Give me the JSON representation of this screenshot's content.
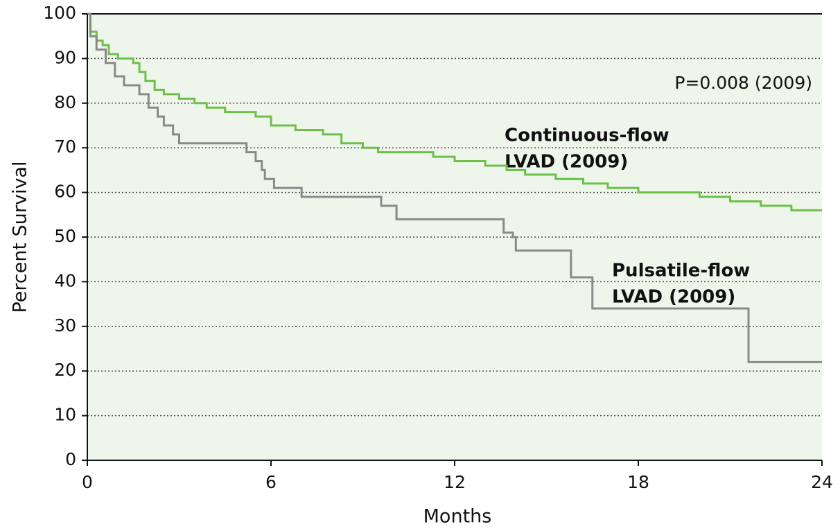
{
  "chart_data": {
    "type": "line",
    "step": true,
    "x_label": "Months",
    "y_label": "Percent Survival",
    "xlim": [
      0,
      24
    ],
    "xticks": [
      0,
      6,
      12,
      18,
      24
    ],
    "ylim": [
      0,
      100
    ],
    "yticks": [
      0,
      10,
      20,
      30,
      40,
      50,
      60,
      70,
      80,
      90,
      100
    ],
    "grid": true,
    "background": "#eef5ea",
    "annotations": [
      "P=0.008 (2009)"
    ],
    "series": [
      {
        "label_lines": [
          "Continuous-flow",
          "LVAD (2009)"
        ],
        "color": "#6cc04a",
        "x": [
          0,
          0.1,
          0.3,
          0.5,
          0.7,
          1.0,
          1.5,
          1.7,
          1.9,
          2.2,
          2.5,
          3.0,
          3.5,
          3.9,
          4.5,
          5.5,
          6.0,
          6.8,
          7.7,
          8.3,
          9.0,
          9.5,
          11.3,
          12.0,
          13.0,
          13.7,
          14.3,
          15.3,
          16.2,
          17.0,
          18.0,
          20.0,
          21.0,
          22.0,
          23.0,
          24
        ],
        "values": [
          100,
          96,
          94,
          93,
          91,
          90,
          89,
          87,
          85,
          83,
          82,
          81,
          80,
          79,
          78,
          77,
          75,
          74,
          73,
          71,
          70,
          69,
          68,
          67,
          66,
          65,
          64,
          63,
          62,
          61,
          60,
          59,
          58,
          57,
          56,
          56
        ]
      },
      {
        "label_lines": [
          "Pulsatile-flow",
          "LVAD (2009)"
        ],
        "color": "#8a8a8a",
        "x": [
          0,
          0.1,
          0.3,
          0.6,
          0.9,
          1.2,
          1.7,
          2.0,
          2.3,
          2.5,
          2.8,
          3.0,
          5.2,
          5.5,
          5.7,
          5.8,
          6.1,
          7.0,
          9.6,
          10.1,
          13.6,
          13.9,
          14.0,
          15.8,
          16.5,
          21.6,
          24
        ],
        "values": [
          100,
          95,
          92,
          89,
          86,
          84,
          82,
          79,
          77,
          75,
          73,
          71,
          69,
          67,
          65,
          63,
          61,
          59,
          57,
          54,
          51,
          50,
          47,
          41,
          34,
          22,
          22
        ]
      }
    ]
  }
}
